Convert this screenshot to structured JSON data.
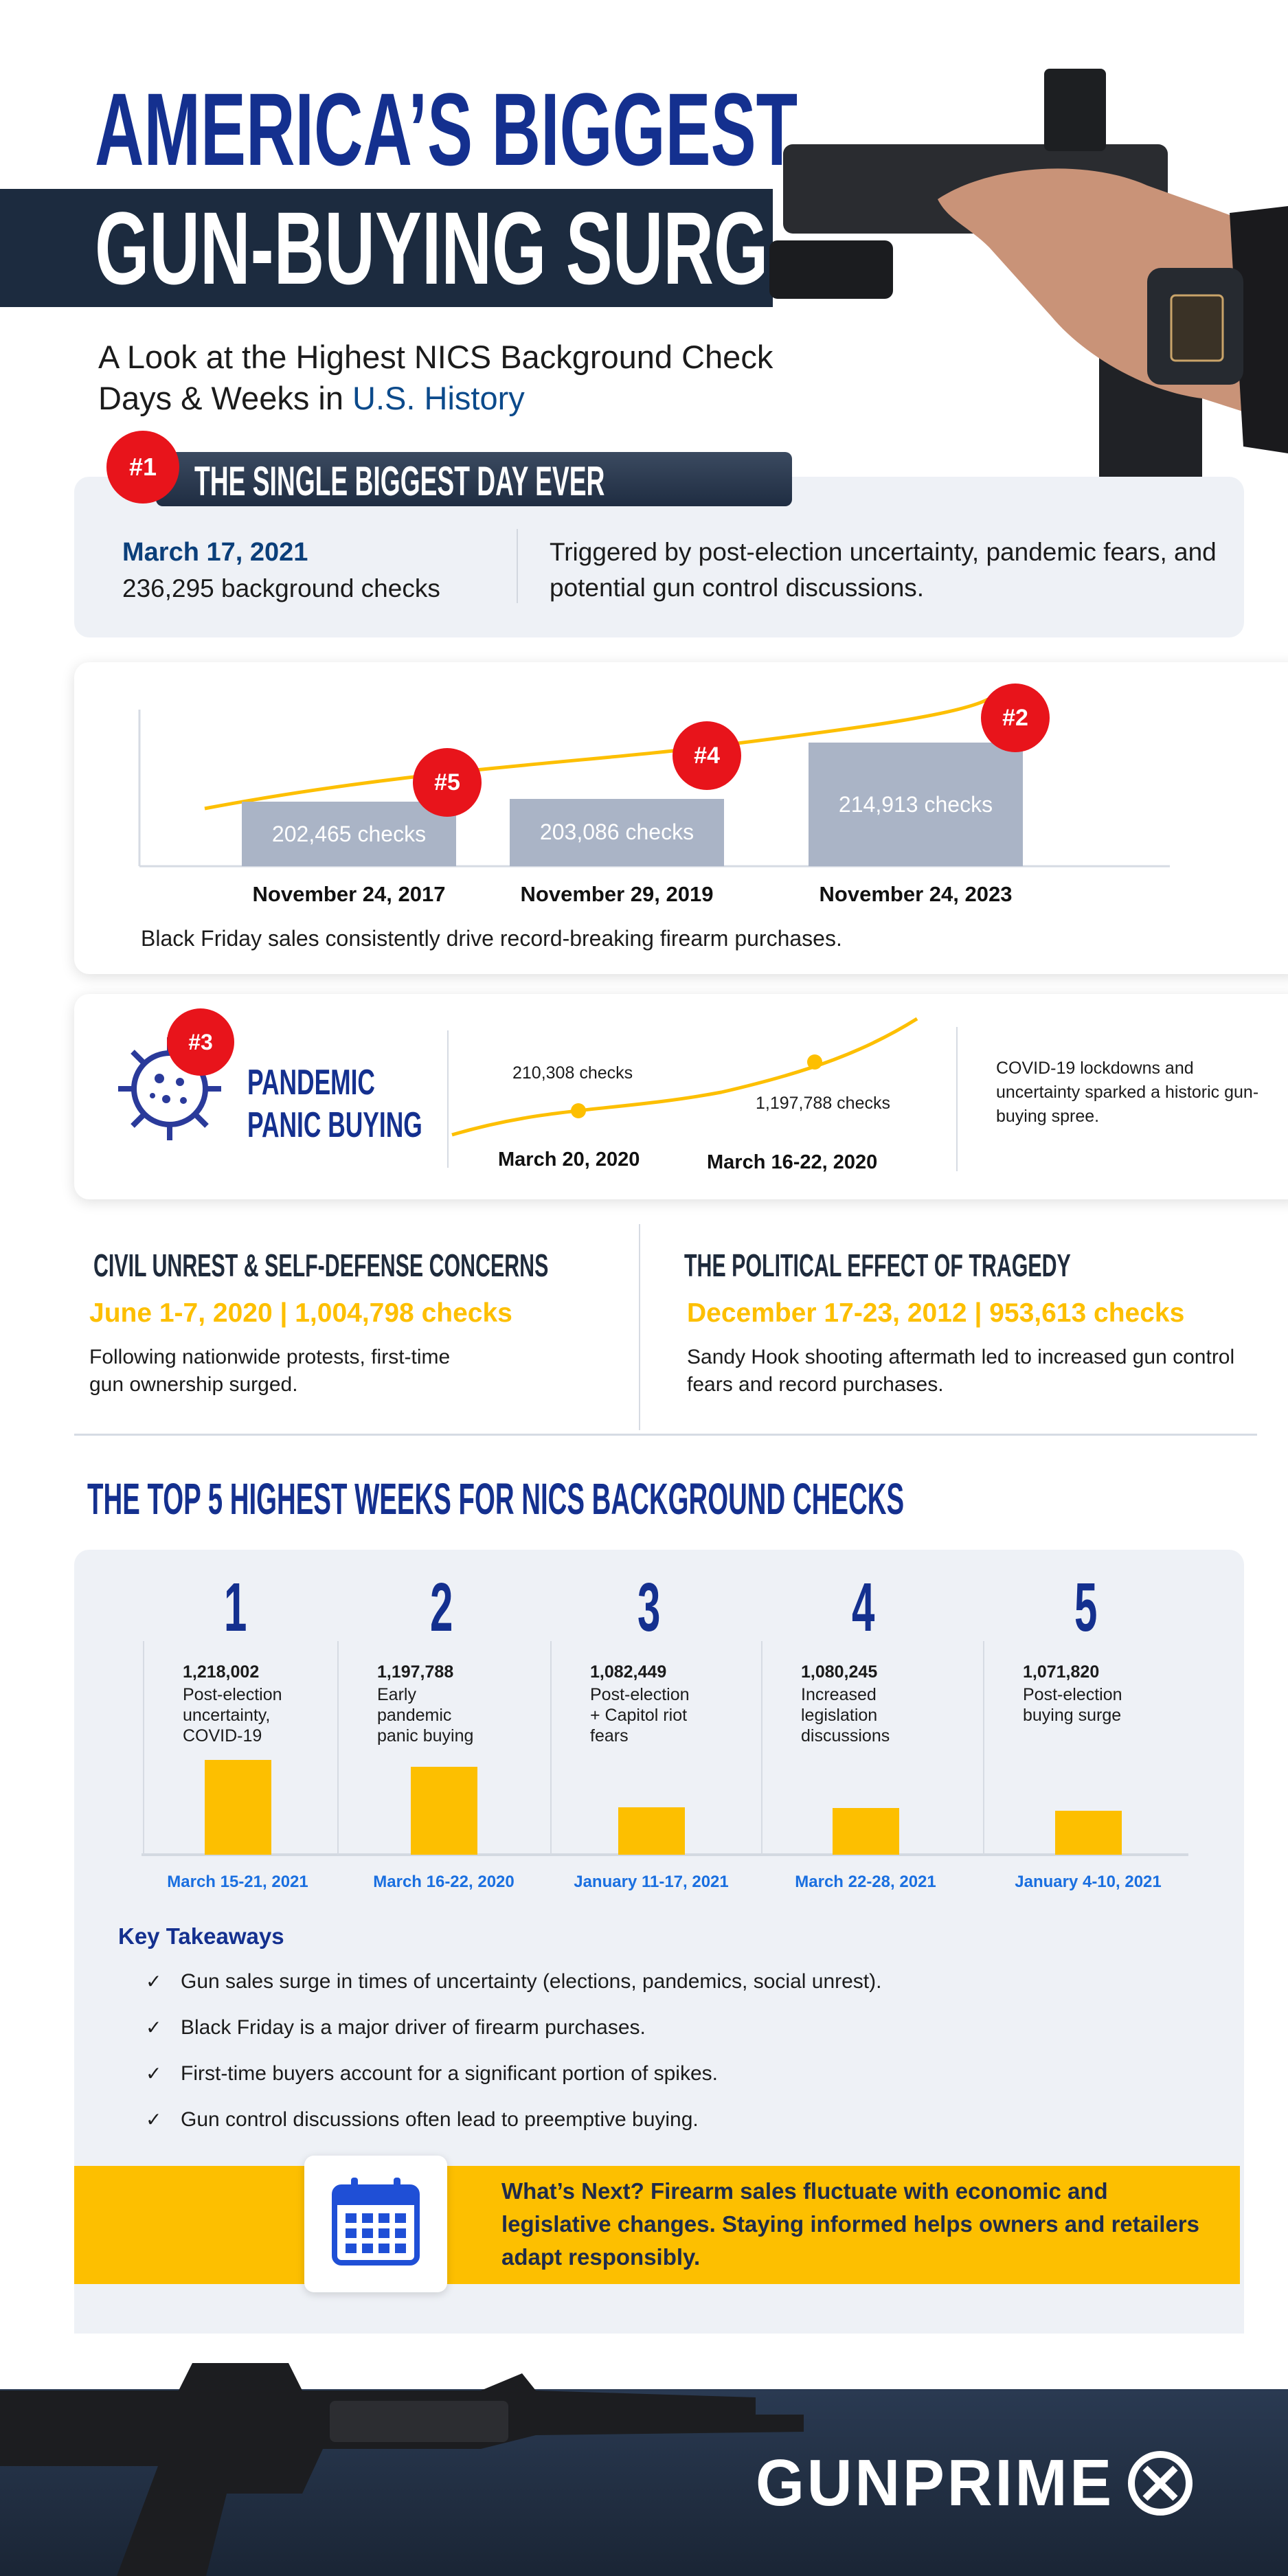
{
  "header": {
    "title_line1": "AMERICA’S BIGGEST",
    "title_line2": "GUN-BUYING SURGES",
    "subtitle_line1": "A Look at the Highest NICS Background Check",
    "subtitle_line2_prefix": "Days & Weeks in ",
    "subtitle_line2_highlight": "U.S. History"
  },
  "biggest_day": {
    "rank": "#1",
    "heading": "THE SINGLE BIGGEST DAY EVER",
    "date": "March 17, 2021",
    "checks": "236,295 background checks",
    "description": "Triggered by post-election uncertainty, pandemic fears, and potential gun control discussions."
  },
  "black_friday": {
    "caption": "Black Friday sales consistently drive record-breaking firearm purchases.",
    "items": [
      {
        "rank": "#5",
        "date": "November 24, 2017",
        "label": "202,465  checks",
        "value": 202465
      },
      {
        "rank": "#4",
        "date": "November 29, 2019",
        "label": "203,086 checks",
        "value": 203086
      },
      {
        "rank": "#2",
        "date": "November 24, 2023",
        "label": "214,913 checks",
        "value": 214913
      }
    ]
  },
  "pandemic": {
    "rank": "#3",
    "heading_line1": "PANDEMIC",
    "heading_line2": "PANIC BUYING",
    "points": [
      {
        "label": "210,308 checks",
        "date": "March 20, 2020"
      },
      {
        "label": "1,197,788 checks",
        "date": "March 16-22, 2020"
      }
    ],
    "description": "COVID-19 lockdowns and uncertainty sparked a historic gun-buying spree."
  },
  "civil_unrest": {
    "heading": "CIVIL UNREST & SELF-DEFENSE CONCERNS",
    "date_line": "June 1-7, 2020 | 1,004,798 checks",
    "body": "Following nationwide protests, first-time gun ownership surged."
  },
  "tragedy": {
    "heading": "THE POLITICAL EFFECT OF TRAGEDY",
    "date_line": "December 17-23, 2012 | 953,613 checks",
    "body": "Sandy Hook shooting aftermath led to increased gun control fears and record purchases."
  },
  "top5": {
    "heading": "THE TOP 5 HIGHEST WEEKS FOR NICS BACKGROUND CHECKS"
  },
  "chart_data": {
    "type": "bar",
    "categories": [
      "March 15-21, 2021",
      "March 16-22, 2020",
      "January 11-17, 2021",
      "March 22-28, 2021",
      "January 4-10, 2021"
    ],
    "values": [
      1218002,
      1197788,
      1082449,
      1080245,
      1071820
    ],
    "items": [
      {
        "rank": "1",
        "value_label": "1,218,002",
        "desc": "Post-election uncertainty, COVID-19",
        "date": "March 15-21, ",
        "year": "2021"
      },
      {
        "rank": "2",
        "value_label": "1,197,788",
        "desc": "Early pandemic panic buying",
        "date": "March 16-22, ",
        "year": "2020"
      },
      {
        "rank": "3",
        "value_label": "1,082,449",
        "desc": "Post-election + Capitol riot fears",
        "date": "January 11-17, ",
        "year": "2021"
      },
      {
        "rank": "4",
        "value_label": "1,080,245",
        "desc": "Increased legislation discussions",
        "date": "March 22-28, ",
        "year": "2021"
      },
      {
        "rank": "5",
        "value_label": "1,071,820",
        "desc": "Post-election buying surge",
        "date": "January 4-10, ",
        "year": "2021"
      }
    ],
    "colors": {
      "bar": "#fdbf00",
      "year": "#1a6fe0"
    }
  },
  "takeaways": {
    "heading": "Key Takeaways",
    "items": [
      "Gun sales surge in times of uncertainty (elections, pandemics, social unrest).",
      "Black Friday is a major driver of firearm purchases.",
      "First-time buyers account for a significant portion of spikes.",
      "Gun control discussions often lead to preemptive buying."
    ],
    "check_icon": "✓"
  },
  "whats_next": {
    "icon": "calendar-icon",
    "text": "What’s Next? Firearm sales fluctuate with economic and legislative changes. Staying informed helps owners and retailers adapt responsibly."
  },
  "footer": {
    "logo": "GUNPRIME"
  },
  "colors": {
    "navy": "#14308f",
    "dark": "#1c2b3f",
    "yellow": "#fdbf00",
    "red": "#e8141b",
    "panel": "#eef1f6"
  }
}
